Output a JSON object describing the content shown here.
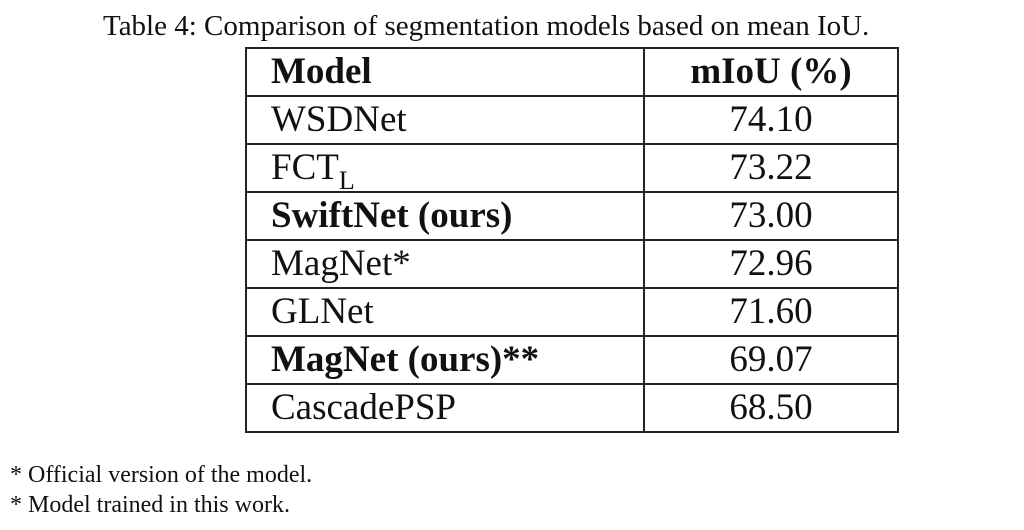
{
  "caption": "Table 4: Comparison of segmentation models based on mean IoU.",
  "table": {
    "header": [
      "Model",
      "mIoU (%)"
    ],
    "rows": [
      {
        "model": "WSDNet",
        "miou": "74.10",
        "bold": false
      },
      {
        "model": "FCT",
        "subscript": "L",
        "miou": "73.22",
        "bold": false
      },
      {
        "model": "SwiftNet (ours)",
        "miou": "73.00",
        "bold": true
      },
      {
        "model": "MagNet*",
        "miou": "72.96",
        "bold": false
      },
      {
        "model": "GLNet",
        "miou": "71.60",
        "bold": false
      },
      {
        "model": "MagNet (ours)**",
        "miou": "69.07",
        "bold": true
      },
      {
        "model": "CascadePSP",
        "miou": "68.50",
        "bold": false
      }
    ]
  },
  "footnotes": [
    "* Official version of the model.",
    "* Model trained in this work."
  ]
}
